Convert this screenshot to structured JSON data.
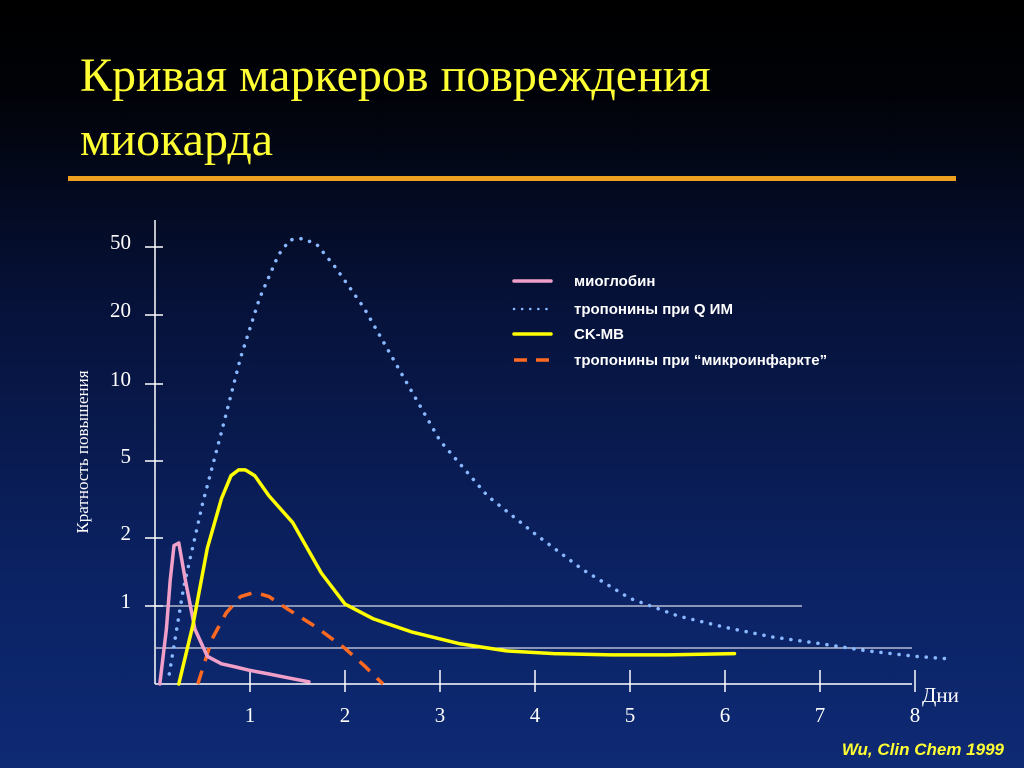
{
  "slide": {
    "title_lines": [
      "Кривая маркеров повреждения",
      "миокарда"
    ],
    "source": "Wu, Clin Chem 1999",
    "colors": {
      "title": "#ffff33",
      "rule": "#f0a020",
      "background_top": "#000000",
      "background_bottom": "#0e2a74"
    }
  },
  "chart_data": {
    "type": "line",
    "xlabel": "Дни",
    "ylabel": "Кратность повышения",
    "x_ticks": [
      "1",
      "2",
      "3",
      "4",
      "5",
      "6",
      "7",
      "8"
    ],
    "y_ticks": [
      "1",
      "2",
      "5",
      "10",
      "20",
      "50"
    ],
    "y_scale": "log",
    "xlim": [
      0,
      8.4
    ],
    "reference_line_y": 1,
    "grid": false,
    "legend_position": "top-right",
    "series": [
      {
        "name": "миоглобин",
        "color": "#f0a0c8",
        "style": "solid",
        "x": [
          0.05,
          0.12,
          0.16,
          0.2,
          0.25,
          0.32,
          0.42,
          0.55,
          0.7,
          0.85,
          1.0,
          1.2,
          1.4,
          1.62
        ],
        "y": [
          0.3,
          0.7,
          1.3,
          1.85,
          1.9,
          1.3,
          0.7,
          0.46,
          0.41,
          0.39,
          0.37,
          0.35,
          0.33,
          0.31
        ]
      },
      {
        "name": "тропонины при Q ИМ",
        "color": "#8ab8ff",
        "style": "dotted",
        "x": [
          0.15,
          0.3,
          0.5,
          0.7,
          0.9,
          1.1,
          1.3,
          1.42,
          1.55,
          1.7,
          1.9,
          2.2,
          2.6,
          3.0,
          3.5,
          4.0,
          4.5,
          5.0,
          5.5,
          6.0,
          6.5,
          7.0,
          7.5,
          8.0,
          8.4
        ],
        "y": [
          0.35,
          1.2,
          3.0,
          6.5,
          13.0,
          25.0,
          45.0,
          55.0,
          56.0,
          52.0,
          38.0,
          22.0,
          11.0,
          6.0,
          3.3,
          2.1,
          1.45,
          1.08,
          0.86,
          0.72,
          0.62,
          0.56,
          0.5,
          0.46,
          0.44
        ]
      },
      {
        "name": "CK-MB",
        "color": "#ffff00",
        "style": "solid",
        "x": [
          0.25,
          0.4,
          0.55,
          0.7,
          0.8,
          0.88,
          0.95,
          1.05,
          1.2,
          1.45,
          1.75,
          2.0,
          2.3,
          2.7,
          3.2,
          3.7,
          4.2,
          4.8,
          5.4,
          6.1
        ],
        "y": [
          0.3,
          0.75,
          1.8,
          3.2,
          4.2,
          4.5,
          4.5,
          4.2,
          3.3,
          2.4,
          1.4,
          1.02,
          0.82,
          0.67,
          0.56,
          0.5,
          0.48,
          0.47,
          0.47,
          0.48
        ]
      },
      {
        "name": "тропонины при  “микроинфаркте”",
        "color": "#ff6a20",
        "style": "dashed",
        "x": [
          0.45,
          0.6,
          0.75,
          0.9,
          1.05,
          1.2,
          1.4,
          1.7,
          2.0,
          2.2,
          2.4
        ],
        "y": [
          0.3,
          0.6,
          0.9,
          1.1,
          1.15,
          1.1,
          0.95,
          0.72,
          0.52,
          0.4,
          0.3
        ]
      }
    ]
  }
}
